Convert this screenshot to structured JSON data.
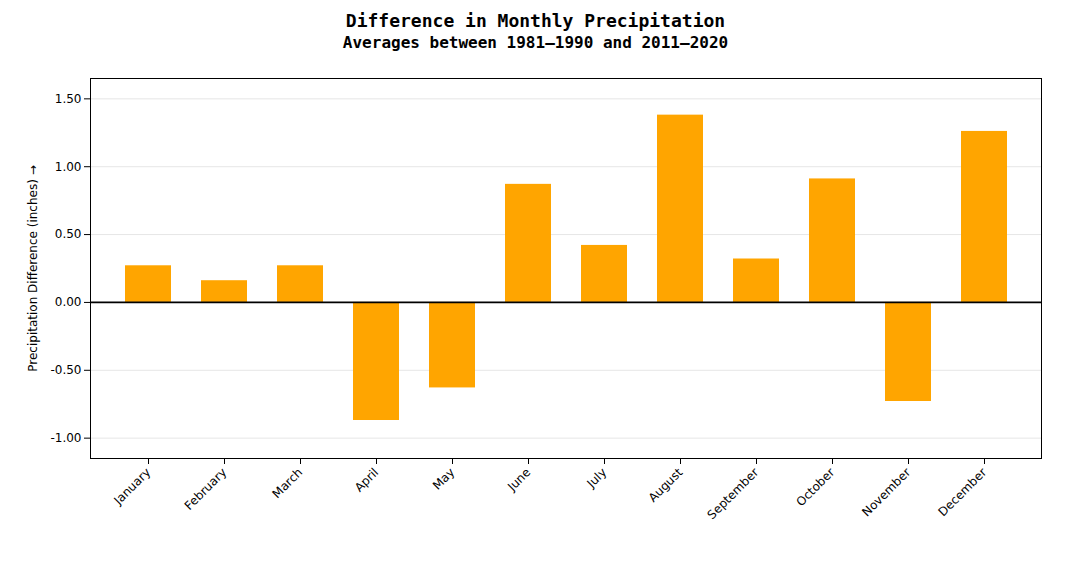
{
  "chart_data": {
    "type": "bar",
    "title": "Difference in Monthly Precipitation",
    "subtitle": "Averages between 1981–1990 and 2011–2020",
    "ylabel": "Precipitation Difference (inches)",
    "categories": [
      "January",
      "February",
      "March",
      "April",
      "May",
      "June",
      "July",
      "August",
      "September",
      "October",
      "November",
      "December"
    ],
    "values": [
      0.27,
      0.16,
      0.27,
      -0.87,
      -0.63,
      0.87,
      0.42,
      1.38,
      0.32,
      0.91,
      -0.73,
      1.26
    ],
    "color": "#FFA500",
    "ylim": [
      -1.15,
      1.65
    ],
    "yticks": [
      {
        "value": -1.0,
        "label": "-1.00"
      },
      {
        "value": -0.5,
        "label": "-0.50"
      },
      {
        "value": 0.0,
        "label": "0.00"
      },
      {
        "value": 0.5,
        "label": "0.50"
      },
      {
        "value": 1.0,
        "label": "1.00"
      },
      {
        "value": 1.5,
        "label": "1.50"
      }
    ],
    "grid": true
  }
}
